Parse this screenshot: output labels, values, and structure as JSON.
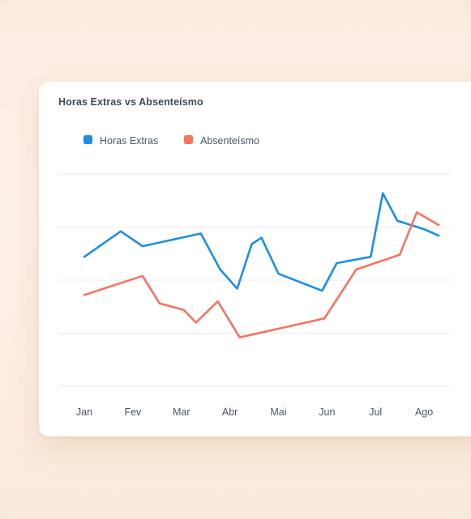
{
  "card": {
    "title": "Horas Extras vs Absenteísmo"
  },
  "colors": {
    "horas_extras": "#1a8fe8",
    "absenteismo": "#f47560",
    "grid": "#e8ebf0"
  },
  "chart_data": {
    "type": "line",
    "title": "Horas Extras vs Absenteísmo",
    "xlabel": "",
    "ylabel": "",
    "ylim": [
      0,
      100
    ],
    "grid": true,
    "legend_position": "top-left",
    "x_ticks": [
      "Jan",
      "Fev",
      "Mar",
      "Abr",
      "Mai",
      "Jun",
      "Jul",
      "Ago"
    ],
    "x_range": [
      0,
      7.3
    ],
    "series": [
      {
        "name": "Horas Extras",
        "color": "#1a8fe8",
        "points": [
          {
            "x": 0.0,
            "y": 61
          },
          {
            "x": 0.75,
            "y": 73
          },
          {
            "x": 1.2,
            "y": 66
          },
          {
            "x": 2.4,
            "y": 72
          },
          {
            "x": 2.8,
            "y": 55
          },
          {
            "x": 3.15,
            "y": 46
          },
          {
            "x": 3.45,
            "y": 67
          },
          {
            "x": 3.65,
            "y": 70
          },
          {
            "x": 4.0,
            "y": 53
          },
          {
            "x": 4.9,
            "y": 45
          },
          {
            "x": 5.2,
            "y": 58
          },
          {
            "x": 5.9,
            "y": 61
          },
          {
            "x": 6.15,
            "y": 91
          },
          {
            "x": 6.45,
            "y": 78
          },
          {
            "x": 7.0,
            "y": 74
          },
          {
            "x": 7.3,
            "y": 71
          }
        ]
      },
      {
        "name": "Absenteísmo",
        "color": "#f47560",
        "points": [
          {
            "x": 0.0,
            "y": 43
          },
          {
            "x": 1.2,
            "y": 52
          },
          {
            "x": 1.55,
            "y": 39
          },
          {
            "x": 2.05,
            "y": 36
          },
          {
            "x": 2.3,
            "y": 30
          },
          {
            "x": 2.75,
            "y": 40
          },
          {
            "x": 3.2,
            "y": 23
          },
          {
            "x": 4.95,
            "y": 32
          },
          {
            "x": 5.6,
            "y": 55
          },
          {
            "x": 6.5,
            "y": 62
          },
          {
            "x": 6.85,
            "y": 82
          },
          {
            "x": 7.3,
            "y": 76
          }
        ]
      }
    ]
  }
}
